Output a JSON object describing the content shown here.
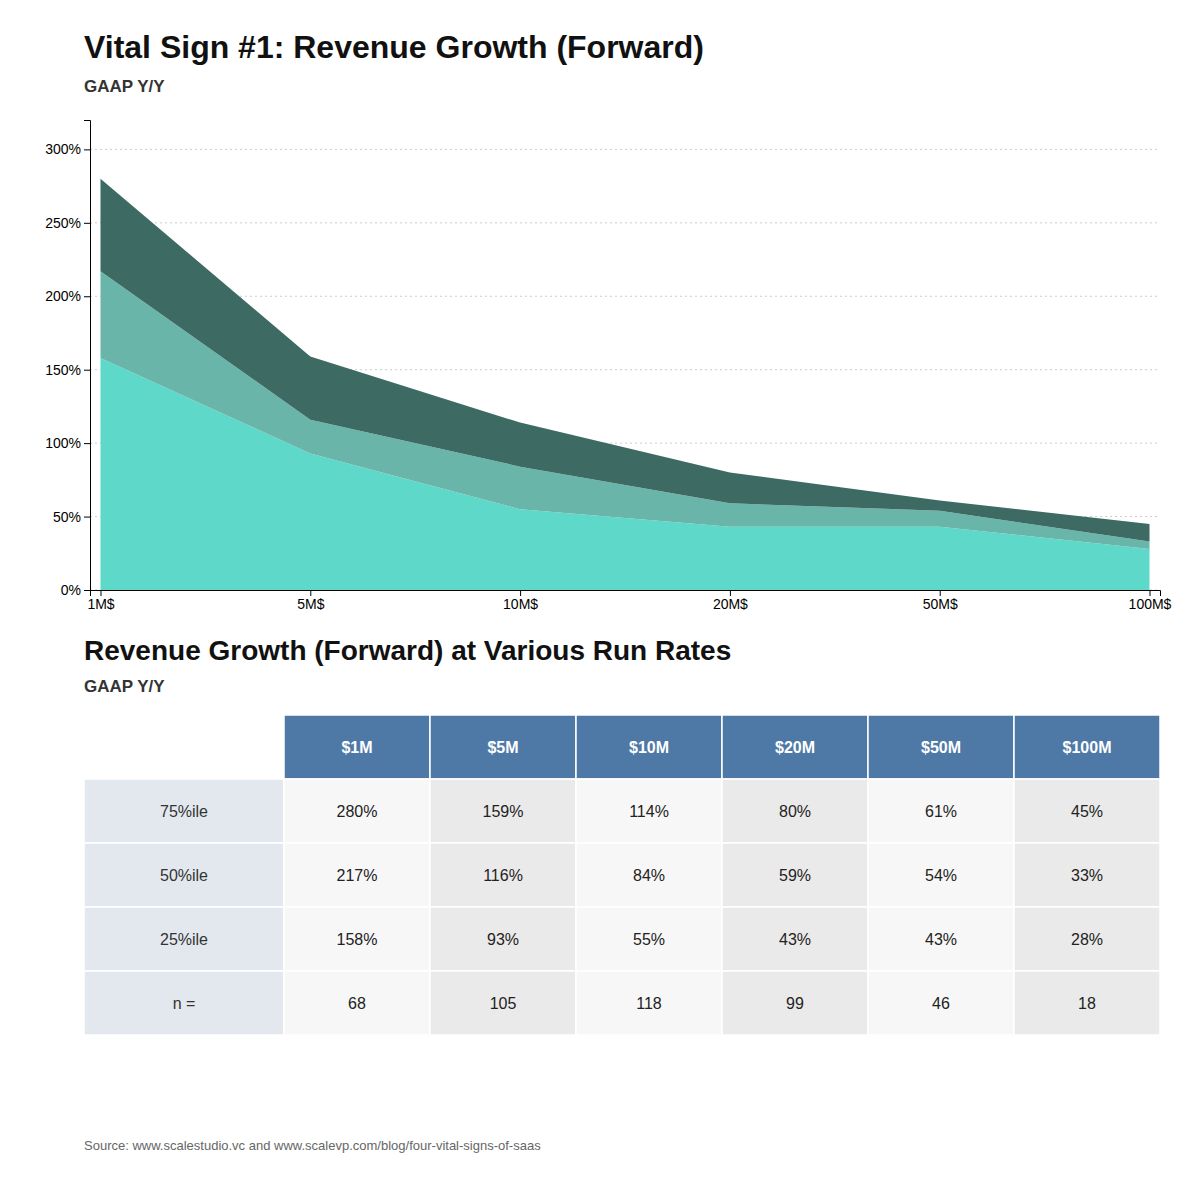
{
  "chart_data": [
    {
      "type": "area",
      "title": "Vital Sign #1: Revenue Growth (Forward)",
      "subtitle": "GAAP Y/Y",
      "categories": [
        "1M$",
        "5M$",
        "10M$",
        "20M$",
        "50M$",
        "100M$"
      ],
      "series": [
        {
          "color": "#5ed8c8",
          "values": [
            158,
            93,
            55,
            43,
            43,
            28
          ]
        },
        {
          "color": "#6ab5aa",
          "values": [
            217,
            116,
            84,
            59,
            54,
            33
          ]
        },
        {
          "color": "#3d6b63",
          "values": [
            280,
            159,
            114,
            80,
            61,
            45
          ]
        }
      ],
      "ylim": [
        0,
        320
      ],
      "yticks": [
        {
          "value": 0,
          "label": "0%"
        },
        {
          "value": 50,
          "label": "50%"
        },
        {
          "value": 100,
          "label": "100%"
        },
        {
          "value": 150,
          "label": "150%"
        },
        {
          "value": 200,
          "label": "200%"
        },
        {
          "value": 250,
          "label": "250%"
        },
        {
          "value": 300,
          "label": "300%"
        }
      ],
      "grid": true
    },
    {
      "type": "table",
      "title": "Revenue Growth (Forward) at Various Run Rates",
      "subtitle": "GAAP Y/Y",
      "categories": [
        "$1M",
        "$5M",
        "$10M",
        "$20M",
        "$50M",
        "$100M"
      ],
      "series": [
        {
          "name": "75%ile",
          "values": [
            280,
            159,
            114,
            80,
            61,
            45
          ],
          "value_labels": [
            "280%",
            "159%",
            "114%",
            "80%",
            "61%",
            "45%"
          ]
        },
        {
          "name": "50%ile",
          "values": [
            217,
            116,
            84,
            59,
            54,
            33
          ],
          "value_labels": [
            "217%",
            "116%",
            "84%",
            "59%",
            "54%",
            "33%"
          ]
        },
        {
          "name": "25%ile",
          "values": [
            158,
            93,
            55,
            43,
            43,
            28
          ],
          "value_labels": [
            "158%",
            "93%",
            "55%",
            "43%",
            "43%",
            "28%"
          ]
        },
        {
          "name": "n =",
          "values": [
            68,
            105,
            118,
            99,
            46,
            18
          ]
        }
      ],
      "annotations": [
        "Source: www.scalestudio.vc and www.scalevp.com/blog/four-vital-signs-of-saas"
      ]
    }
  ]
}
